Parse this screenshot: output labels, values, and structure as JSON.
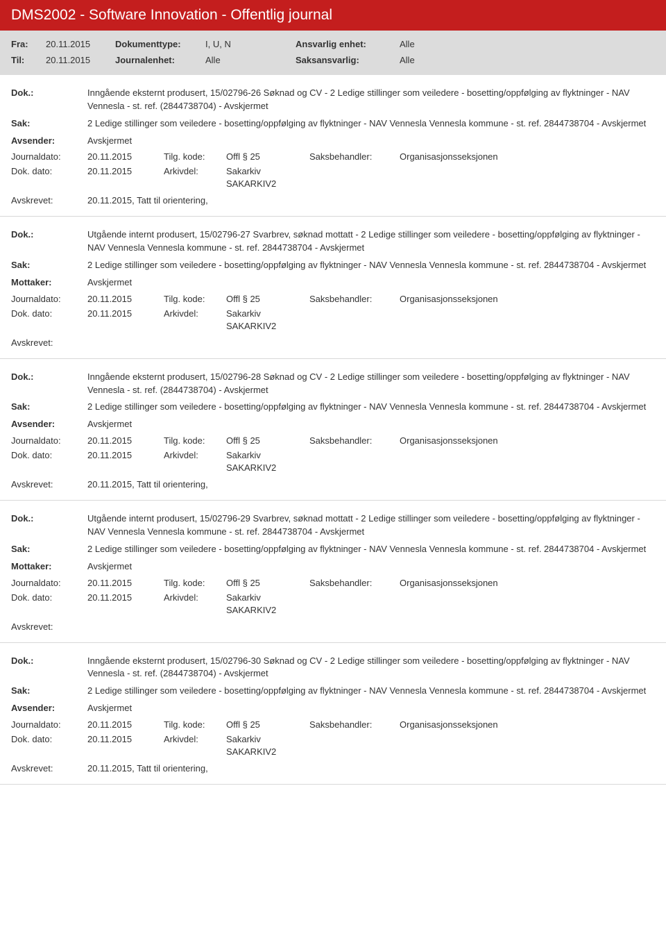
{
  "header": {
    "title": "DMS2002 - Software Innovation - Offentlig journal"
  },
  "filter": {
    "fra_label": "Fra:",
    "fra": "20.11.2015",
    "til_label": "Til:",
    "til": "20.11.2015",
    "dokumenttype_label": "Dokumenttype:",
    "dokumenttype": "I, U, N",
    "journalenhet_label": "Journalenhet:",
    "journalenhet": "Alle",
    "ansvarlig_label": "Ansvarlig enhet:",
    "ansvarlig": "Alle",
    "saksansvarlig_label": "Saksansvarlig:",
    "saksansvarlig": "Alle"
  },
  "labels": {
    "dok": "Dok.:",
    "sak": "Sak:",
    "avsender": "Avsender:",
    "mottaker": "Mottaker:",
    "journaldato": "Journaldato:",
    "dokdato": "Dok. dato:",
    "avskrevet": "Avskrevet:",
    "tilgkode": "Tilg. kode:",
    "arkivdel": "Arkivdel:",
    "saksbehandler": "Saksbehandler:"
  },
  "common": {
    "sak_text": "2 Ledige stillinger som veiledere - bosetting/oppfølging av flyktninger - NAV Vennesla Vennesla kommune - st. ref. 2844738704 - Avskjermet",
    "avskjermet": "Avskjermet",
    "journaldato": "20.11.2015",
    "dokdato": "20.11.2015",
    "tilgkode": "Offl § 25",
    "arkivdel1": "Sakarkiv",
    "arkivdel2": "SAKARKIV2",
    "saksbehandler_val": "Organisasjonsseksjonen",
    "avskrevet_text": "20.11.2015, Tatt til orientering,"
  },
  "entries": [
    {
      "dok": "Inngående eksternt produsert, 15/02796-26 Søknad og CV - 2 Ledige stillinger som veiledere - bosetting/oppfølging av flyktninger - NAV Vennesla - st. ref. (2844738704) - Avskjermet",
      "party_label": "Avsender:",
      "avskrevet": "20.11.2015, Tatt til orientering,"
    },
    {
      "dok": "Utgående internt produsert, 15/02796-27 Svarbrev, søknad mottatt - 2 Ledige stillinger som veiledere - bosetting/oppfølging av flyktninger - NAV Vennesla Vennesla kommune - st. ref. 2844738704 - Avskjermet",
      "party_label": "Mottaker:",
      "avskrevet": ""
    },
    {
      "dok": "Inngående eksternt produsert, 15/02796-28 Søknad og CV - 2 Ledige stillinger som veiledere - bosetting/oppfølging av flyktninger - NAV Vennesla - st. ref. (2844738704) - Avskjermet",
      "party_label": "Avsender:",
      "avskrevet": "20.11.2015, Tatt til orientering,"
    },
    {
      "dok": "Utgående internt produsert, 15/02796-29 Svarbrev, søknad mottatt - 2 Ledige stillinger som veiledere - bosetting/oppfølging av flyktninger - NAV Vennesla Vennesla kommune - st. ref. 2844738704 - Avskjermet",
      "party_label": "Mottaker:",
      "avskrevet": ""
    },
    {
      "dok": "Inngående eksternt produsert, 15/02796-30 Søknad og CV - 2 Ledige stillinger som veiledere - bosetting/oppfølging av flyktninger - NAV Vennesla - st. ref. (2844738704) - Avskjermet",
      "party_label": "Avsender:",
      "avskrevet": "20.11.2015, Tatt til orientering,"
    }
  ]
}
